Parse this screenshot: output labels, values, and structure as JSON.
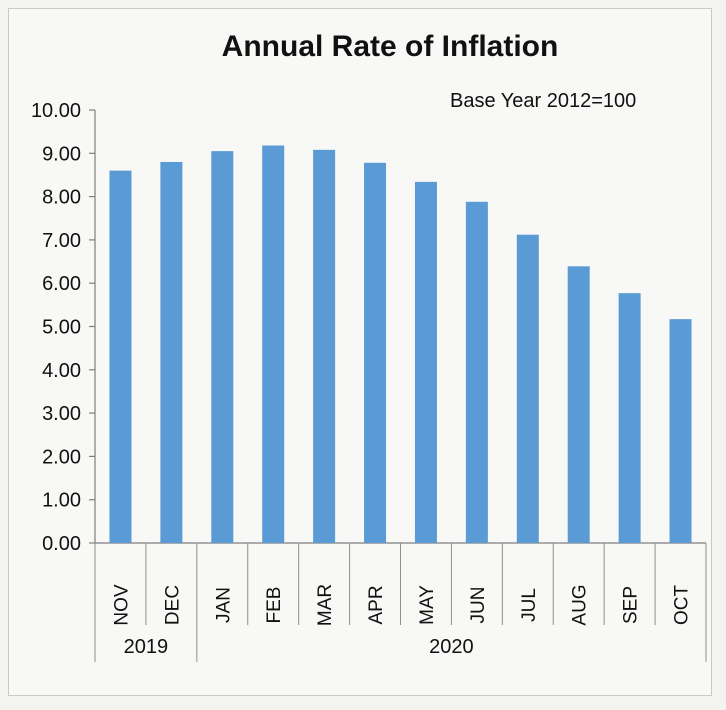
{
  "chart_data": {
    "type": "bar",
    "title": "Annual Rate of Inflation",
    "subtitle": "Base Year 2012=100",
    "xlabel": "",
    "ylabel": "",
    "ylim": [
      0,
      10
    ],
    "yticks": [
      "0.00",
      "1.00",
      "2.00",
      "3.00",
      "4.00",
      "5.00",
      "6.00",
      "7.00",
      "8.00",
      "9.00",
      "10.00"
    ],
    "categories": [
      "NOV",
      "DEC",
      "JAN",
      "FEB",
      "MAR",
      "APR",
      "MAY",
      "JUN",
      "JUL",
      "AUG",
      "SEP",
      "OCT"
    ],
    "values": [
      8.6,
      8.8,
      9.05,
      9.18,
      9.08,
      8.78,
      8.34,
      7.88,
      7.12,
      6.39,
      5.77,
      5.17
    ],
    "groups": [
      {
        "label": "2019",
        "start": 0,
        "end": 1
      },
      {
        "label": "2020",
        "start": 2,
        "end": 11
      }
    ],
    "bar_color": "#5b9bd5",
    "grid": false,
    "legend": "none"
  }
}
